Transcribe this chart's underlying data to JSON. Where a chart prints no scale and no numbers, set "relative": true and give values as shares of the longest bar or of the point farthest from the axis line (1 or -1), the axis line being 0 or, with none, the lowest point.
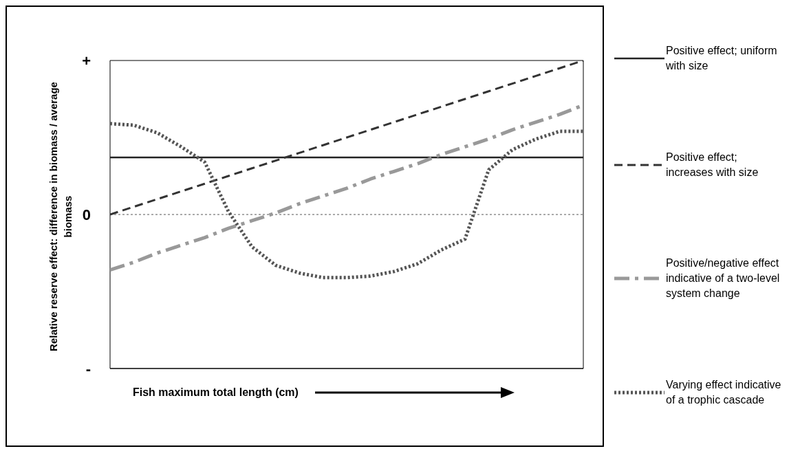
{
  "chart_data": {
    "type": "line",
    "ylabel": "Relative reserve effect: difference in biomass / average biomass",
    "categories": [
      null,
      null,
      null,
      null,
      null,
      null,
      null,
      null,
      null,
      null,
      null,
      null,
      null,
      null,
      null,
      null,
      null,
      null,
      null,
      null,
      null
    ],
    "relative": true,
    "annotations": [
      "+",
      "0",
      "-",
      "Fish maximum total length (cm)"
    ],
    "series": [
      {
        "name": "Positive effect; uniform with size",
        "color": "#222222",
        "line_style": "solid",
        "values": [
          0.37,
          0.37,
          0.37,
          0.37,
          0.37,
          0.37,
          0.37,
          0.37,
          0.37,
          0.37,
          0.37,
          0.37,
          0.37,
          0.37,
          0.37,
          0.37,
          0.37,
          0.37,
          0.37,
          0.37,
          0.37
        ]
      },
      {
        "name": "Positive effect; increases with size",
        "color": "#333333",
        "line_style": "dashed",
        "values": [
          0,
          0.05,
          0.1,
          0.15,
          0.2,
          0.25,
          0.3,
          0.35,
          0.4,
          0.45,
          0.5,
          0.55,
          0.6,
          0.65,
          0.7,
          0.75,
          0.8,
          0.85,
          0.9,
          0.95,
          1
        ]
      },
      {
        "name": "Positive/negative effect  indicative of a two-level system change",
        "color": "#999999",
        "line_style": "dashdot",
        "values": [
          -0.36,
          -0.31,
          -0.25,
          -0.2,
          -0.15,
          -0.09,
          -0.04,
          0.01,
          0.07,
          0.12,
          0.17,
          0.23,
          0.28,
          0.33,
          0.39,
          0.44,
          0.49,
          0.55,
          0.6,
          0.65,
          0.71
        ]
      },
      {
        "name": "Varying effect indicative of a trophic cascade",
        "color": "#555555",
        "line_style": "dotted",
        "values": [
          0.59,
          0.58,
          0.53,
          0.44,
          0.34,
          0.02,
          -0.21,
          -0.33,
          -0.38,
          -0.41,
          -0.41,
          -0.4,
          -0.37,
          -0.32,
          -0.23,
          -0.16,
          0.29,
          0.42,
          0.49,
          0.54,
          0.54
        ]
      }
    ],
    "ref_lines": [
      {
        "axis": "y",
        "value": 0,
        "color": "#555555",
        "line_style": "dotted"
      }
    ],
    "grid": false,
    "legend": "right",
    "tick_labels": "y",
    "marker": "none"
  }
}
